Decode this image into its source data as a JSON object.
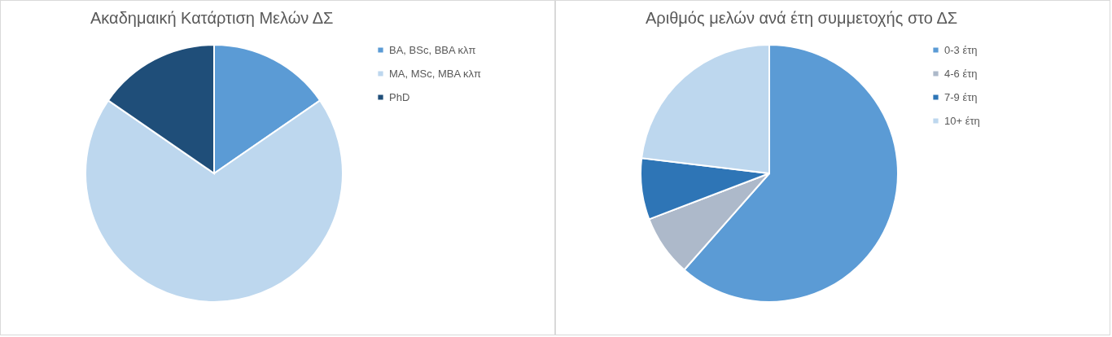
{
  "chart_data": [
    {
      "type": "pie",
      "title": "Ακαδημαική Κατάρτιση Μελών ΔΣ",
      "categories": [
        "BA, BSc, BBA κλπ",
        "MA, MSc, MBA κλπ",
        "PhD"
      ],
      "values": [
        15.4,
        69.2,
        15.4
      ],
      "colors": [
        "#5b9bd5",
        "#bdd7ee",
        "#1f4e79"
      ],
      "legend": "right"
    },
    {
      "type": "pie",
      "title": "Αριθμός μελών ανά έτη συμμετοχής στο ΔΣ",
      "categories": [
        "0-3 έτη",
        "4-6 έτη",
        "7-9 έτη",
        "10+ έτη"
      ],
      "values": [
        61.5,
        7.7,
        7.7,
        23.1
      ],
      "colors": [
        "#5b9bd5",
        "#adb9ca",
        "#2e75b6",
        "#bdd7ee"
      ],
      "legend": "right"
    }
  ]
}
